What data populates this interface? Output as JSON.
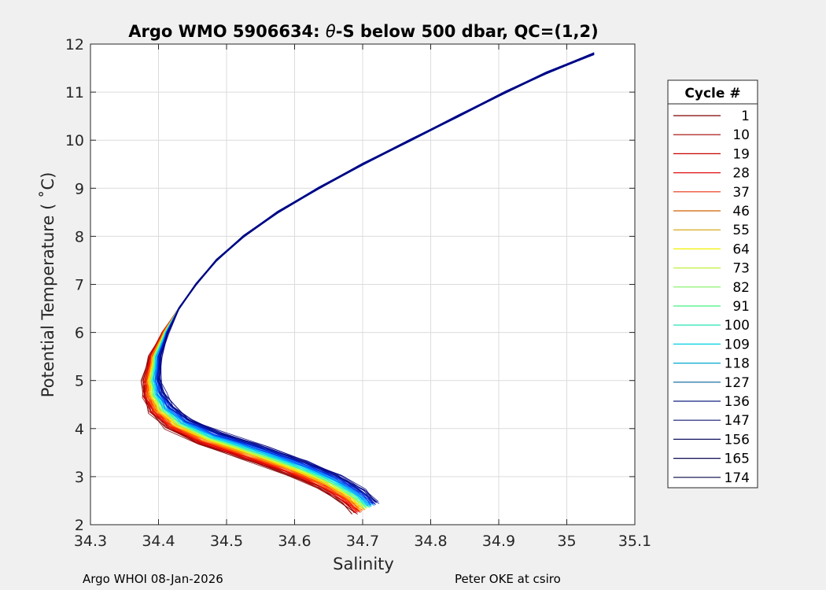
{
  "chart_data": {
    "type": "line",
    "title_parts": [
      "Argo WMO 5906634: ",
      "θ",
      "-S below 500 dbar,  QC=(1,2)"
    ],
    "xlabel": "Salinity",
    "ylabel": "Potential Temperature ( ˚C)",
    "xlim": [
      34.3,
      35.1
    ],
    "ylim": [
      2,
      12
    ],
    "xticks": [
      "34.3",
      "34.4",
      "34.5",
      "34.6",
      "34.7",
      "34.8",
      "34.9",
      "35",
      "35.1"
    ],
    "yticks": [
      "2",
      "3",
      "4",
      "5",
      "6",
      "7",
      "8",
      "9",
      "10",
      "11",
      "12"
    ],
    "grid": true,
    "legend": {
      "title": "Cycle #",
      "placement": "outside-right",
      "entries": [
        {
          "label": "1",
          "color": "#800000"
        },
        {
          "label": "10",
          "color": "#a30000"
        },
        {
          "label": "19",
          "color": "#c80000"
        },
        {
          "label": "28",
          "color": "#e01010"
        },
        {
          "label": "37",
          "color": "#e83010"
        },
        {
          "label": "46",
          "color": "#d06000"
        },
        {
          "label": "55",
          "color": "#d0a000"
        },
        {
          "label": "64",
          "color": "#f0f000"
        },
        {
          "label": "73",
          "color": "#c0f040"
        },
        {
          "label": "82",
          "color": "#80f060"
        },
        {
          "label": "91",
          "color": "#40f080"
        },
        {
          "label": "100",
          "color": "#10e0b0"
        },
        {
          "label": "109",
          "color": "#00d0e0"
        },
        {
          "label": "118",
          "color": "#00a8d0"
        },
        {
          "label": "127",
          "color": "#00609a"
        },
        {
          "label": "136",
          "color": "#102080"
        },
        {
          "label": "147",
          "color": "#101870"
        },
        {
          "label": "156",
          "color": "#101060"
        },
        {
          "label": "165",
          "color": "#0a0a50"
        },
        {
          "label": "174",
          "color": "#050545"
        }
      ]
    },
    "profile_colors": [
      "#800000",
      "#b00000",
      "#e00000",
      "#ff2000",
      "#ff6000",
      "#ffa000",
      "#ffe000",
      "#c0ff30",
      "#60ff90",
      "#20f0d0",
      "#00c8ff",
      "#0090ff",
      "#0050ff",
      "#0020d0",
      "#0010a0",
      "#000080"
    ],
    "salinity_curve": [
      {
        "theta": 11.8,
        "salinity": 35.04
      },
      {
        "theta": 11.4,
        "salinity": 34.97
      },
      {
        "theta": 11.0,
        "salinity": 34.91
      },
      {
        "theta": 10.5,
        "salinity": 34.84
      },
      {
        "theta": 10.0,
        "salinity": 34.77
      },
      {
        "theta": 9.5,
        "salinity": 34.7
      },
      {
        "theta": 9.0,
        "salinity": 34.635
      },
      {
        "theta": 8.5,
        "salinity": 34.575
      },
      {
        "theta": 8.0,
        "salinity": 34.525
      },
      {
        "theta": 7.5,
        "salinity": 34.485
      },
      {
        "theta": 7.0,
        "salinity": 34.455
      },
      {
        "theta": 6.5,
        "salinity": 34.43
      },
      {
        "theta": 6.0,
        "salinity": 34.41
      },
      {
        "theta": 5.5,
        "salinity": 34.395
      },
      {
        "theta": 5.0,
        "salinity": 34.39
      },
      {
        "theta": 4.7,
        "salinity": 34.393
      },
      {
        "theta": 4.4,
        "salinity": 34.405
      },
      {
        "theta": 4.1,
        "salinity": 34.43
      },
      {
        "theta": 3.8,
        "salinity": 34.475
      },
      {
        "theta": 3.5,
        "salinity": 34.54
      },
      {
        "theta": 3.2,
        "salinity": 34.6
      },
      {
        "theta": 2.9,
        "salinity": 34.65
      },
      {
        "theta": 2.6,
        "salinity": 34.685
      },
      {
        "theta": 2.35,
        "salinity": 34.705
      }
    ],
    "footer_left": "Argo WHOI 08-Jan-2026",
    "footer_right": "Peter OKE at csiro"
  }
}
